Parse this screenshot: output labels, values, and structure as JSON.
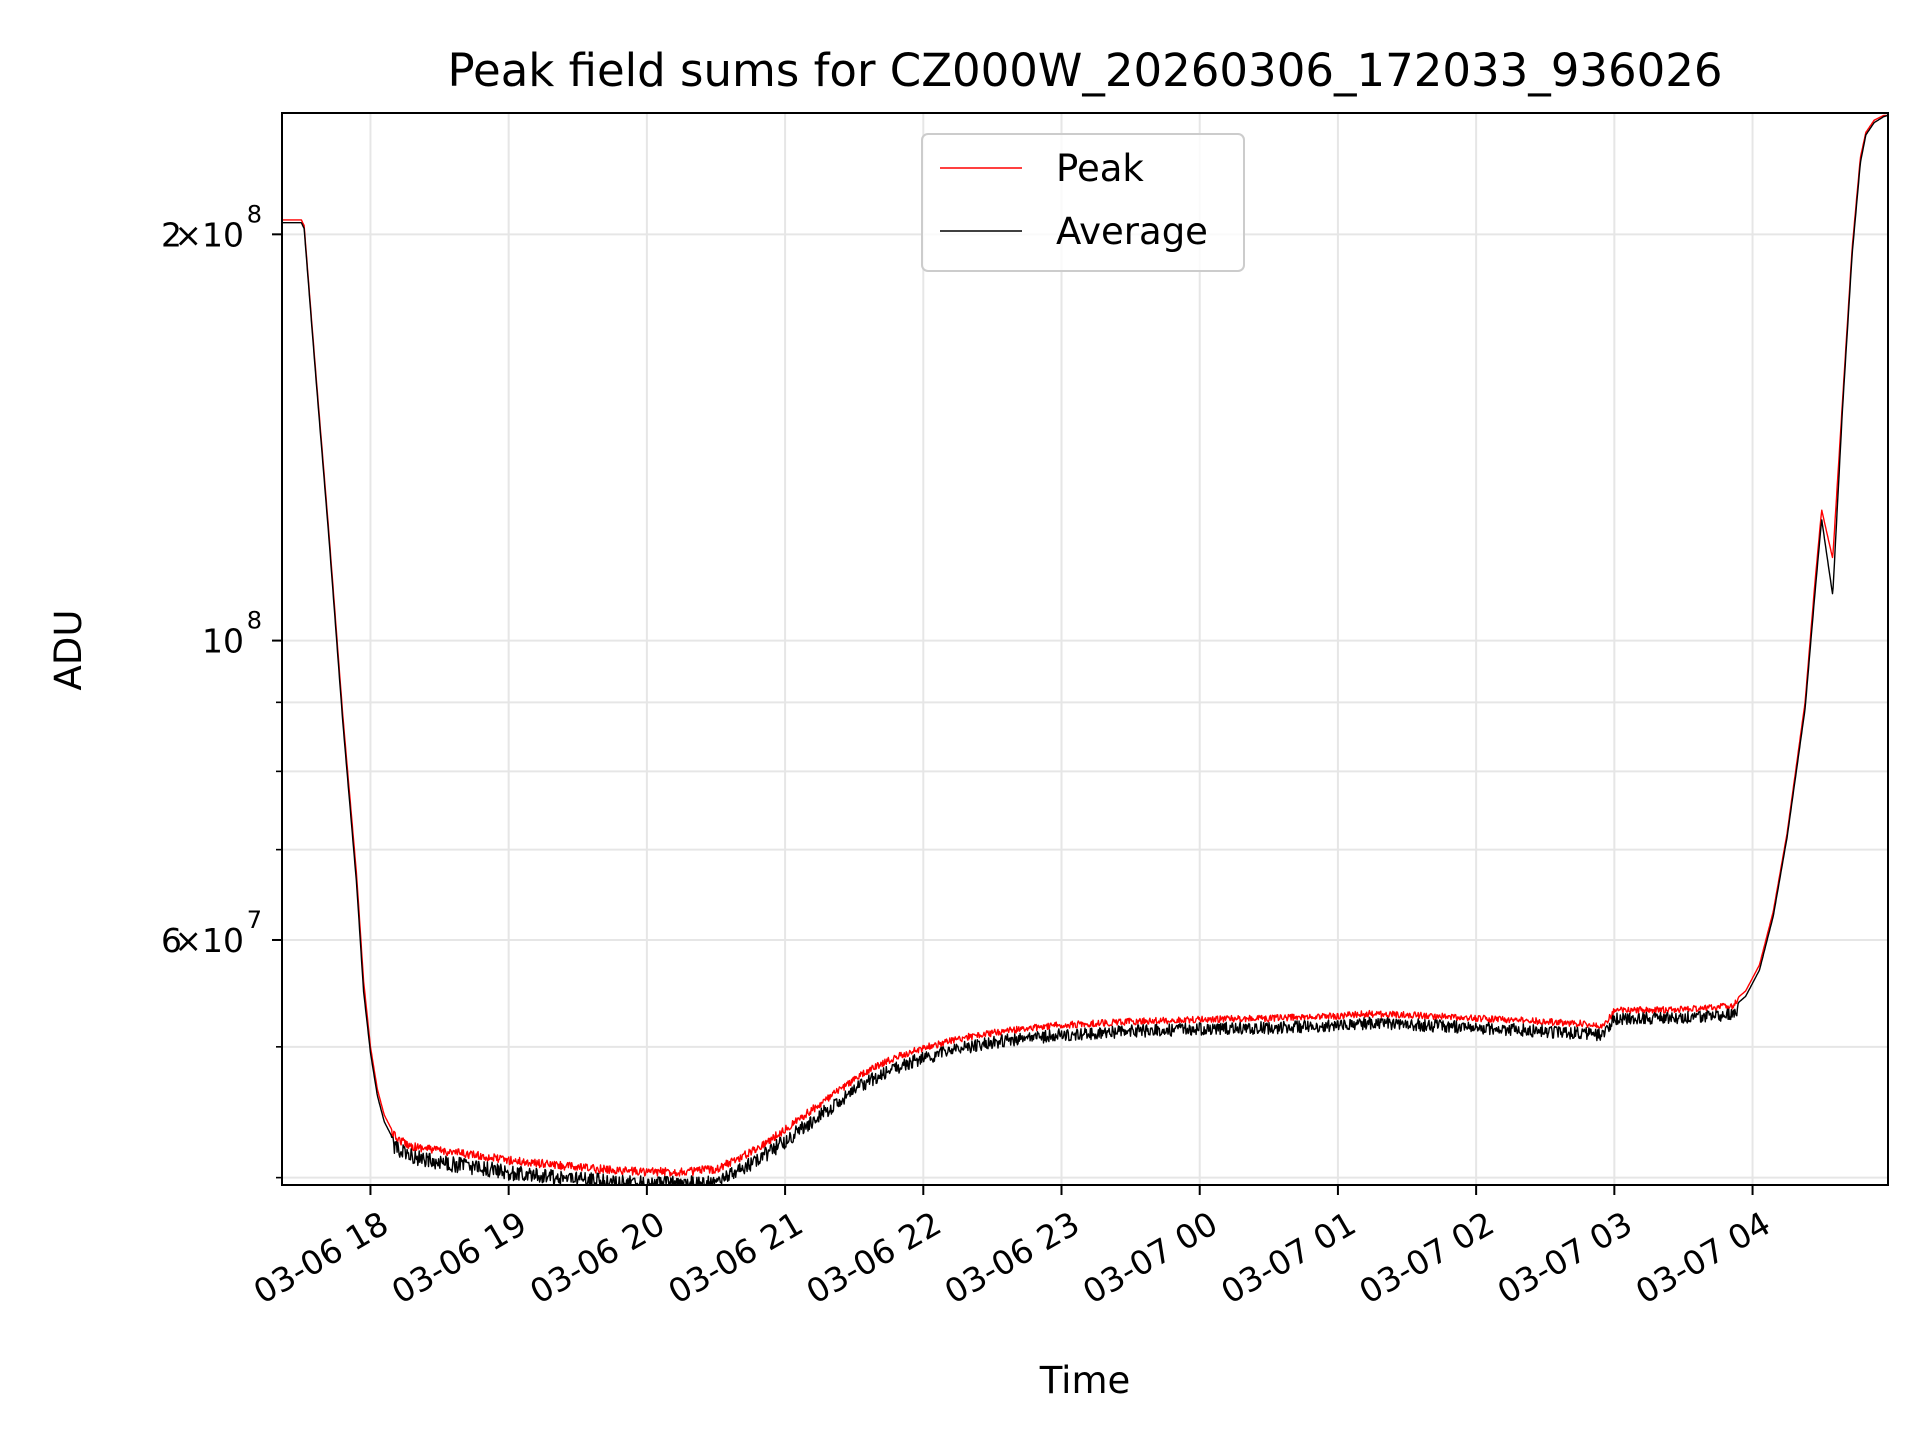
{
  "chart_data": {
    "type": "line",
    "title": "Peak field sums for CZ000W_20260306_172033_936026",
    "xlabel": "Time",
    "ylabel": "ADU",
    "yscale": "log",
    "xunit": "hours since 2026-03-06 00:00",
    "xlim": [
      17.36,
      28.98
    ],
    "ylim": [
      39500000,
      246000000
    ],
    "grid": true,
    "legend_position": "top-center",
    "x_ticks": [
      {
        "value": 18,
        "label": "03-06 18"
      },
      {
        "value": 19,
        "label": "03-06 19"
      },
      {
        "value": 20,
        "label": "03-06 20"
      },
      {
        "value": 21,
        "label": "03-06 21"
      },
      {
        "value": 22,
        "label": "03-06 22"
      },
      {
        "value": 23,
        "label": "03-06 23"
      },
      {
        "value": 24,
        "label": "03-07 00"
      },
      {
        "value": 25,
        "label": "03-07 01"
      },
      {
        "value": 26,
        "label": "03-07 02"
      },
      {
        "value": 27,
        "label": "03-07 03"
      },
      {
        "value": 28,
        "label": "03-07 04"
      }
    ],
    "y_major_ticks": [
      {
        "value": 60000000,
        "mantissa": "6",
        "exponent": "7"
      },
      {
        "value": 100000000,
        "mantissa": "",
        "exponent": "8"
      },
      {
        "value": 200000000,
        "mantissa": "2",
        "exponent": "8"
      }
    ],
    "y_minor_ticks": [
      40000000,
      50000000,
      70000000,
      80000000,
      90000000,
      300000000
    ],
    "series": [
      {
        "name": "Peak",
        "color": "#ff0000",
        "noise": 600000,
        "x": [
          17.36,
          17.5,
          17.52,
          17.6,
          17.7,
          17.8,
          17.9,
          17.95,
          18.0,
          18.05,
          18.1,
          18.15,
          18.2,
          18.3,
          18.5,
          18.8,
          19.0,
          19.5,
          19.8,
          20.0,
          20.3,
          20.5,
          20.7,
          20.9,
          21.1,
          21.3,
          21.5,
          21.65,
          21.8,
          22.0,
          22.3,
          22.6,
          23.0,
          23.5,
          24.0,
          24.5,
          25.0,
          25.2,
          25.5,
          26.0,
          26.5,
          26.93,
          27.0,
          27.5,
          27.85,
          27.95,
          28.05,
          28.15,
          28.25,
          28.38,
          28.45,
          28.5,
          28.58,
          28.65,
          28.72,
          28.78,
          28.82,
          28.88,
          28.95,
          28.98
        ],
        "y": [
          205000000,
          205000000,
          203000000,
          160000000,
          120000000,
          88000000,
          67000000,
          56000000,
          50000000,
          46500000,
          44500000,
          43500000,
          43000000,
          42500000,
          42200000,
          41800000,
          41500000,
          41000000,
          40800000,
          40700000,
          40700000,
          40900000,
          41800000,
          43000000,
          44500000,
          46000000,
          47600000,
          48600000,
          49400000,
          50200000,
          51100000,
          51700000,
          52200000,
          52500000,
          52700000,
          52800000,
          53000000,
          53200000,
          53100000,
          52800000,
          52500000,
          52200000,
          53500000,
          53600000,
          53900000,
          55000000,
          57500000,
          63000000,
          72000000,
          90000000,
          110000000,
          125000000,
          115000000,
          150000000,
          195000000,
          228000000,
          238000000,
          243000000,
          245000000,
          245000000
        ]
      },
      {
        "name": "Average",
        "color": "#000000",
        "noise": 1100000,
        "x": [
          17.36,
          17.5,
          17.52,
          17.6,
          17.7,
          17.8,
          17.9,
          17.95,
          18.0,
          18.05,
          18.1,
          18.15,
          18.2,
          18.3,
          18.5,
          18.8,
          19.0,
          19.5,
          19.8,
          20.0,
          20.3,
          20.5,
          20.7,
          20.9,
          21.1,
          21.3,
          21.5,
          21.65,
          21.8,
          22.0,
          22.3,
          22.6,
          23.0,
          23.5,
          24.0,
          24.5,
          25.0,
          25.2,
          25.5,
          26.0,
          26.5,
          26.93,
          27.0,
          27.5,
          27.85,
          27.95,
          28.05,
          28.15,
          28.25,
          28.38,
          28.45,
          28.5,
          28.58,
          28.65,
          28.72,
          28.78,
          28.82,
          28.88,
          28.95,
          28.98
        ],
        "y": [
          204000000,
          204000000,
          202000000,
          159000000,
          119000000,
          87000000,
          66000000,
          55000000,
          49500000,
          46000000,
          44000000,
          43000000,
          42500000,
          42000000,
          41600000,
          41200000,
          40900000,
          40400000,
          40200000,
          40100000,
          40100000,
          40300000,
          41200000,
          42400000,
          43900000,
          45400000,
          47000000,
          48000000,
          48800000,
          49600000,
          50500000,
          51100000,
          51600000,
          51900000,
          52100000,
          52200000,
          52400000,
          52600000,
          52500000,
          52200000,
          51900000,
          51600000,
          53000000,
          53100000,
          53400000,
          54500000,
          57000000,
          62500000,
          71500000,
          89000000,
          108000000,
          123000000,
          108000000,
          148000000,
          193000000,
          226000000,
          237000000,
          242000000,
          244500000,
          245000000
        ]
      }
    ]
  }
}
